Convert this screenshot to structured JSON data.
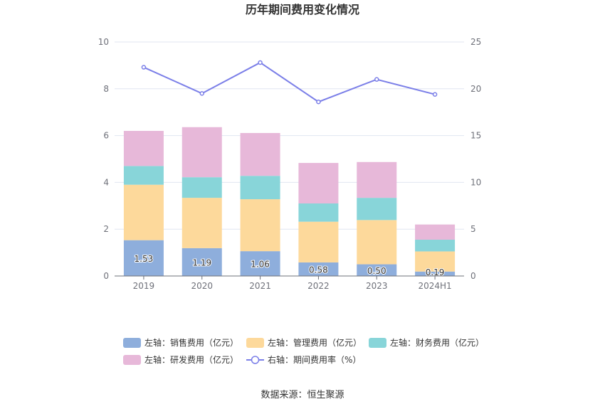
{
  "chart_data": {
    "type": "bar",
    "title": "历年期间费用变化情况",
    "categories": [
      "2019",
      "2020",
      "2021",
      "2022",
      "2023",
      "2024H1"
    ],
    "left_axis": {
      "ylim": [
        0,
        10
      ],
      "ticks": [
        "0",
        "2",
        "4",
        "6",
        "8",
        "10"
      ]
    },
    "right_axis": {
      "ylim": [
        0,
        25
      ],
      "ticks": [
        "0",
        "5",
        "10",
        "15",
        "20",
        "25"
      ]
    },
    "series": [
      {
        "name": "左轴：销售费用（亿元）",
        "axis": "left",
        "type": "bar",
        "color": "#8eaedc",
        "values": [
          1.53,
          1.19,
          1.06,
          0.58,
          0.5,
          0.19
        ],
        "labels": [
          "1.53",
          "1.19",
          "1.06",
          "0.58",
          "0.50",
          "0.19"
        ]
      },
      {
        "name": "左轴：管理费用（亿元）",
        "axis": "left",
        "type": "bar",
        "color": "#fdd99b",
        "values": [
          2.37,
          2.15,
          2.22,
          1.74,
          1.89,
          0.86
        ]
      },
      {
        "name": "左轴：财务费用（亿元）",
        "axis": "left",
        "type": "bar",
        "color": "#88d5d9",
        "values": [
          0.8,
          0.88,
          1.0,
          0.78,
          0.95,
          0.5
        ]
      },
      {
        "name": "左轴：研发费用（亿元）",
        "axis": "left",
        "type": "bar",
        "color": "#e7b8d9",
        "values": [
          1.5,
          2.14,
          1.83,
          1.73,
          1.53,
          0.65
        ]
      },
      {
        "name": "右轴：期间费用率（%）",
        "axis": "right",
        "type": "line",
        "color": "#7b7fe8",
        "values": [
          22.3,
          19.5,
          22.8,
          18.6,
          21.0,
          19.4
        ]
      }
    ],
    "legend_position": "bottom"
  },
  "source": "数据来源：恒生聚源"
}
